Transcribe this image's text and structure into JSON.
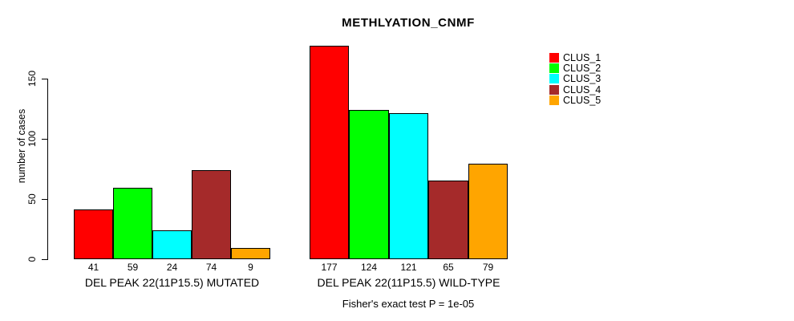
{
  "chart_data": {
    "type": "bar",
    "title": "METHLYATION_CNMF",
    "ylabel": "number of cases",
    "yticks": [
      0,
      50,
      100,
      150
    ],
    "ylim": [
      0,
      187
    ],
    "grid": false,
    "legend_position": "top-right",
    "clusters": [
      {
        "label": "CLUS_1",
        "color": "#FF0000"
      },
      {
        "label": "CLUS_2",
        "color": "#00FF00"
      },
      {
        "label": "CLUS_3",
        "color": "#00FFFF"
      },
      {
        "label": "CLUS_4",
        "color": "#A52A2A"
      },
      {
        "label": "CLUS_5",
        "color": "#FFA500"
      }
    ],
    "groups": [
      {
        "label": "DEL PEAK 22(11P15.5) MUTATED",
        "values": [
          41,
          59,
          24,
          74,
          9
        ]
      },
      {
        "label": "DEL PEAK 22(11P15.5) WILD-TYPE",
        "values": [
          177,
          124,
          121,
          65,
          79
        ]
      }
    ],
    "bar_value_labels": true,
    "annotation": "Fisher's exact test P = 1e-05"
  },
  "colors": {
    "axis": "#000000",
    "text": "#000000",
    "background": "#FFFFFF",
    "bar_border": "#000000"
  }
}
